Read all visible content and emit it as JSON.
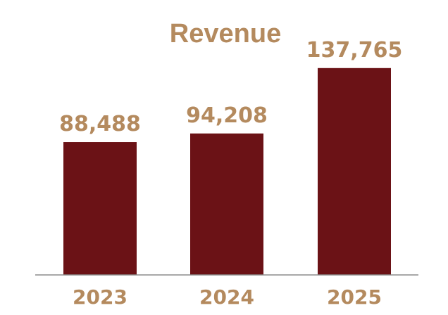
{
  "chart_data": {
    "type": "bar",
    "title": "Revenue",
    "categories": [
      "2023",
      "2024",
      "2025"
    ],
    "values": [
      88488,
      94208,
      137765
    ],
    "value_labels": [
      "88,488",
      "94,208",
      "137,765"
    ],
    "xlabel": "",
    "ylabel": "",
    "ylim": [
      0,
      155000
    ],
    "grid": false,
    "legend": "none"
  },
  "colors": {
    "bar": "#6b1216",
    "text": "#b48a5e",
    "axis": "#8c8c8c"
  }
}
